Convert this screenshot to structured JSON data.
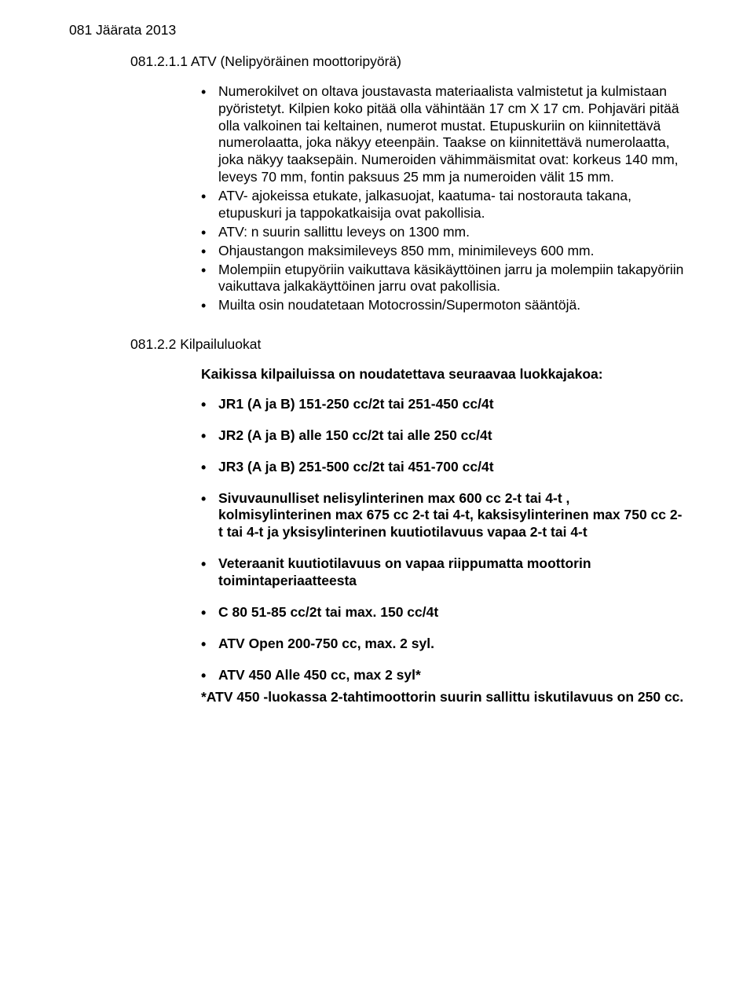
{
  "header": "081 Jäärata 2013",
  "s1": {
    "num": "081.2.1.1 ATV (Nelipyöräinen moottoripyörä)",
    "b1": "Numerokilvet on oltava joustavasta materiaalista valmistetut ja kulmistaan pyöristetyt. Kilpien koko pitää olla vähintään 17 cm X 17 cm. Pohjaväri pitää olla valkoinen tai keltainen, numerot mustat. Etupuskuriin on kiinnitettävä numerolaatta, joka näkyy eteenpäin. Taakse on kiinnitettävä numerolaatta, joka näkyy taaksepäin. Numeroiden vähimmäismitat ovat: korkeus 140 mm, leveys 70 mm, fontin paksuus 25 mm ja numeroiden välit 15 mm.",
    "b2": "ATV- ajokeissa etukate, jalkasuojat, kaatuma- tai nostorauta takana, etupuskuri ja tappokatkaisija ovat pakollisia.",
    "b3": "ATV: n suurin sallittu leveys on 1300 mm.",
    "b4": "Ohjaustangon maksimileveys 850 mm, minimileveys 600 mm.",
    "b5": "Molempiin etupyöriin vaikuttava käsikäyttöinen jarru ja molempiin takapyöriin vaikuttava jalkakäyttöinen jarru ovat pakollisia.",
    "b6": "Muilta osin noudatetaan Motocrossin/Supermoton sääntöjä."
  },
  "s2": {
    "num": "081.2.2 Kilpailuluokat",
    "intro": "Kaikissa kilpailuissa on noudatettava seuraavaa luokkajakoa:",
    "c1": "JR1 (A ja B) 151-250 cc/2t tai 251-450 cc/4t",
    "c2": "JR2 (A ja B) alle 150 cc/2t tai alle 250 cc/4t",
    "c3": "JR3 (A ja B) 251-500 cc/2t tai 451-700 cc/4t",
    "c4": "Sivuvaunulliset nelisylinterinen max 600 cc 2-t tai 4-t , kolmisylinterinen max 675 cc 2-t tai 4-t, kaksisylinterinen max 750 cc 2-t tai 4-t ja yksisylinterinen kuutiotilavuus vapaa 2-t tai 4-t",
    "c5": "Veteraanit kuutiotilavuus on vapaa riippumatta moottorin toimintaperiaatteesta",
    "c6": "C 80 51-85 cc/2t tai max. 150 cc/4t",
    "c7": "ATV Open 200-750 cc, max. 2 syl.",
    "c8": "ATV 450 Alle 450 cc, max 2 syl*",
    "footnote": "*ATV 450 -luokassa 2-tahtimoottorin suurin sallittu iskutilavuus on 250 cc."
  }
}
